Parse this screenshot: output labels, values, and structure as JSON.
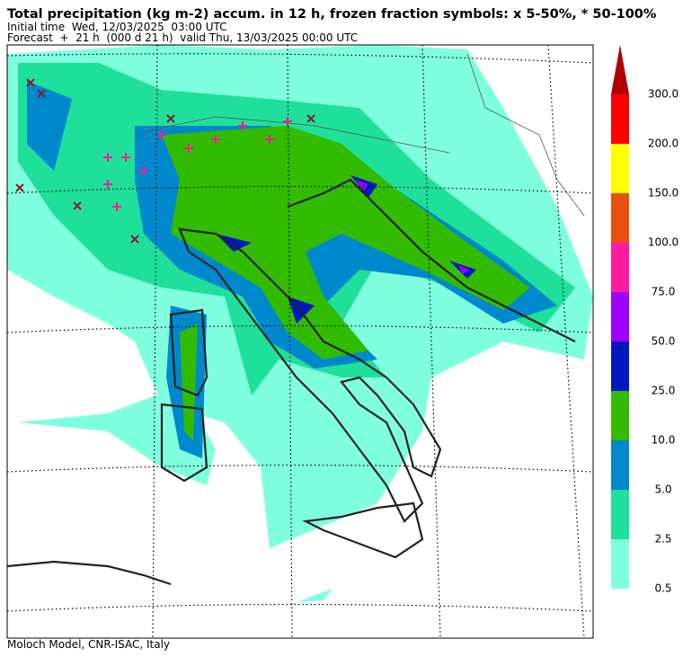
{
  "header": {
    "title": "Total precipitation (kg m-2) accum. in 12 h, frozen fraction symbols: x 5-50%, * 50-100%",
    "initial_time": "Initial time  Wed, 12/03/2025  03:00 UTC",
    "forecast": "Forecast  +  21 h  (000 d 21 h)  valid Thu, 13/03/2025 00:00 UTC"
  },
  "colorbar": {
    "labels": [
      "0.5",
      "2.5",
      "5.0",
      "10.0",
      "25.0",
      "50.0",
      "75.0",
      "100.0",
      "150.0",
      "200.0",
      "300.0"
    ],
    "colors": [
      "#80ffdf",
      "#1ee09a",
      "#0088cc",
      "#33bb00",
      "#0018c0",
      "#a000ff",
      "#ff1aa0",
      "#e85010",
      "#ffff00",
      "#ff0000"
    ],
    "extend_color": "#b00000"
  },
  "footer": "Moloch Model, CNR-ISAC, Italy"
}
